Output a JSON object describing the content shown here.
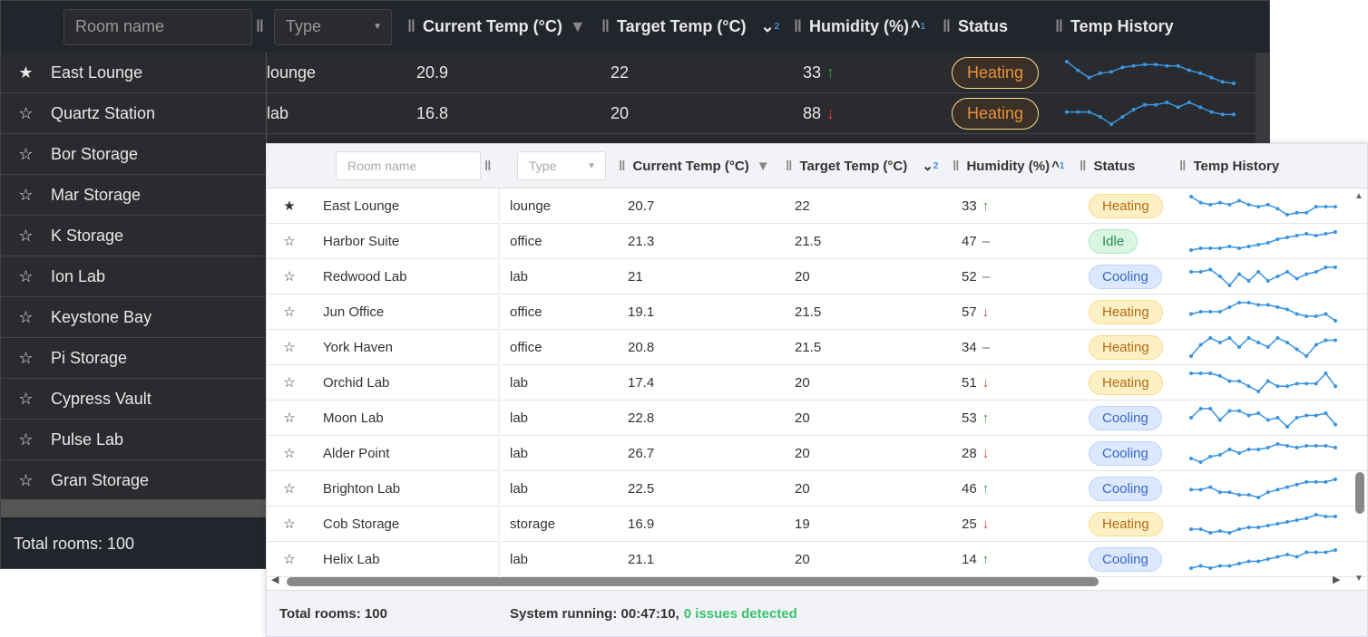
{
  "headers": {
    "room_placeholder": "Room name",
    "type_placeholder": "Type",
    "current": "Current Temp (°C)",
    "target": "Target Temp (°C)",
    "target_sort_index": "2",
    "humidity": "Humidity (%)",
    "humidity_sort_index": "1",
    "status": "Status",
    "history": "Temp History"
  },
  "colors": {
    "spark": "#3a94e0",
    "accent": "#3ac26e"
  },
  "dark_grid": {
    "rows": [
      {
        "starred": true,
        "name": "East Lounge",
        "type": "lounge",
        "current": "20.9",
        "target": "22",
        "humidity": "33",
        "trend": "up",
        "status": "Heating",
        "history": [
          21.6,
          21.0,
          20.5,
          20.8,
          20.9,
          21.2,
          21.3,
          21.4,
          21.4,
          21.3,
          21.3,
          21.0,
          20.8,
          20.5,
          20.2,
          20.1
        ]
      },
      {
        "starred": false,
        "name": "Quartz Station",
        "type": "lab",
        "current": "16.8",
        "target": "20",
        "humidity": "88",
        "trend": "down",
        "status": "Heating",
        "history": [
          17.0,
          17.0,
          17.0,
          16.8,
          16.5,
          16.8,
          17.1,
          17.3,
          17.3,
          17.4,
          17.2,
          17.4,
          17.2,
          17.0,
          16.9,
          16.9
        ]
      },
      {
        "starred": false,
        "name": "Bor Storage"
      },
      {
        "starred": false,
        "name": "Mar Storage"
      },
      {
        "starred": false,
        "name": "K Storage"
      },
      {
        "starred": false,
        "name": "Ion Lab"
      },
      {
        "starred": false,
        "name": "Keystone Bay"
      },
      {
        "starred": false,
        "name": "Pi Storage"
      },
      {
        "starred": false,
        "name": "Cypress Vault"
      },
      {
        "starred": false,
        "name": "Pulse Lab"
      },
      {
        "starred": false,
        "name": "Gran Storage"
      }
    ],
    "footer": "Total rooms: 100"
  },
  "light_grid": {
    "rows": [
      {
        "starred": true,
        "name": "East Lounge",
        "type": "lounge",
        "current": "20.7",
        "target": "22",
        "humidity": "33",
        "trend": "up",
        "status": "Heating",
        "history": [
          21.5,
          21.2,
          21.1,
          21.2,
          21.1,
          21.3,
          21.1,
          21.0,
          21.1,
          20.9,
          20.6,
          20.7,
          20.7,
          21.0,
          21.0,
          21.0
        ]
      },
      {
        "starred": false,
        "name": "Harbor Suite",
        "type": "office",
        "current": "21.3",
        "target": "21.5",
        "humidity": "47",
        "trend": "flat",
        "status": "Idle",
        "history": [
          20.8,
          20.9,
          20.9,
          20.9,
          21.0,
          20.9,
          21.0,
          21.1,
          21.2,
          21.4,
          21.5,
          21.6,
          21.7,
          21.6,
          21.7,
          21.8
        ]
      },
      {
        "starred": false,
        "name": "Redwood Lab",
        "type": "lab",
        "current": "21",
        "target": "20",
        "humidity": "52",
        "trend": "flat",
        "status": "Cooling",
        "history": [
          21.2,
          21.2,
          21.3,
          21.0,
          20.6,
          21.1,
          20.8,
          21.2,
          20.8,
          21.0,
          21.2,
          20.9,
          21.1,
          21.2,
          21.4,
          21.4
        ]
      },
      {
        "starred": false,
        "name": "Jun Office",
        "type": "office",
        "current": "19.1",
        "target": "21.5",
        "humidity": "57",
        "trend": "down",
        "status": "Heating",
        "history": [
          19.3,
          19.4,
          19.4,
          19.4,
          19.6,
          19.8,
          19.8,
          19.7,
          19.7,
          19.6,
          19.5,
          19.3,
          19.2,
          19.2,
          19.3,
          19.0
        ]
      },
      {
        "starred": false,
        "name": "York Haven",
        "type": "office",
        "current": "20.8",
        "target": "21.5",
        "humidity": "34",
        "trend": "flat",
        "status": "Heating",
        "history": [
          20.1,
          20.6,
          20.9,
          20.7,
          20.9,
          20.5,
          20.9,
          20.7,
          20.5,
          20.9,
          20.7,
          20.4,
          20.1,
          20.6,
          20.8,
          20.8
        ]
      },
      {
        "starred": false,
        "name": "Orchid Lab",
        "type": "lab",
        "current": "17.4",
        "target": "20",
        "humidity": "51",
        "trend": "down",
        "status": "Heating",
        "history": [
          17.8,
          17.8,
          17.8,
          17.7,
          17.5,
          17.5,
          17.3,
          17.1,
          17.5,
          17.3,
          17.3,
          17.4,
          17.4,
          17.4,
          17.8,
          17.3
        ]
      },
      {
        "starred": false,
        "name": "Moon Lab",
        "type": "lab",
        "current": "22.8",
        "target": "20",
        "humidity": "53",
        "trend": "up",
        "status": "Cooling",
        "history": [
          22.9,
          23.3,
          23.3,
          22.8,
          23.2,
          23.2,
          23.0,
          23.1,
          22.8,
          22.9,
          22.5,
          22.9,
          23.0,
          23.0,
          23.1,
          22.6
        ]
      },
      {
        "starred": false,
        "name": "Alder Point",
        "type": "lab",
        "current": "26.7",
        "target": "20",
        "humidity": "28",
        "trend": "down",
        "status": "Cooling",
        "history": [
          26.3,
          26.1,
          26.4,
          26.5,
          26.8,
          26.6,
          26.8,
          26.8,
          26.9,
          27.1,
          27.0,
          26.9,
          27.0,
          27.0,
          27.0,
          26.9
        ]
      },
      {
        "starred": false,
        "name": "Brighton Lab",
        "type": "lab",
        "current": "22.5",
        "target": "20",
        "humidity": "46",
        "trend": "up",
        "status": "Cooling",
        "history": [
          22.7,
          22.7,
          22.8,
          22.6,
          22.6,
          22.5,
          22.5,
          22.4,
          22.6,
          22.7,
          22.8,
          22.9,
          23.0,
          23.0,
          23.0,
          23.1
        ]
      },
      {
        "starred": false,
        "name": "Cob Storage",
        "type": "storage",
        "current": "16.9",
        "target": "19",
        "humidity": "25",
        "trend": "down",
        "status": "Heating",
        "history": [
          17.0,
          17.0,
          16.8,
          16.9,
          16.8,
          17.0,
          17.1,
          17.1,
          17.2,
          17.3,
          17.4,
          17.5,
          17.6,
          17.8,
          17.7,
          17.7
        ]
      },
      {
        "starred": false,
        "name": "Helix Lab",
        "type": "lab",
        "current": "21.1",
        "target": "20",
        "humidity": "14",
        "trend": "up",
        "status": "Cooling",
        "history": [
          20.8,
          20.9,
          20.8,
          20.9,
          20.9,
          21.0,
          21.1,
          21.1,
          21.2,
          21.3,
          21.4,
          21.3,
          21.5,
          21.5,
          21.5,
          21.6
        ]
      }
    ],
    "footer_total": "Total rooms: 100",
    "footer_status": "System running: 00:47:10,",
    "footer_issues": "0 issues detected"
  }
}
